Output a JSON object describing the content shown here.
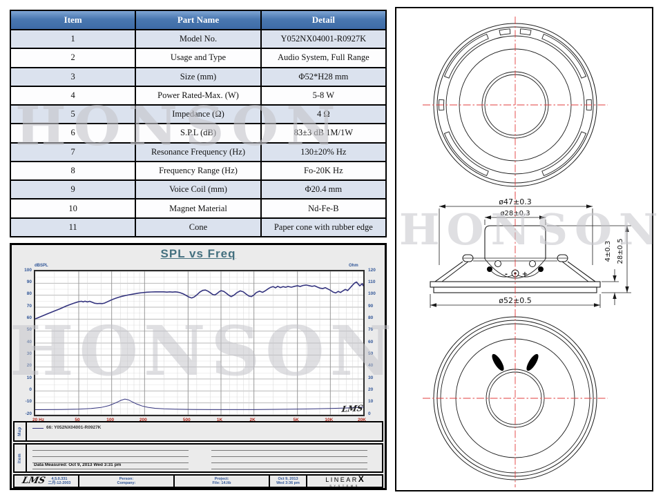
{
  "watermark": "HONSON",
  "table": {
    "headers": [
      "Item",
      "Part Name",
      "Detail"
    ],
    "rows": [
      [
        "1",
        "Model No.",
        "Y052NX04001-R0927K"
      ],
      [
        "2",
        "Usage and Type",
        "Audio System, Full Range"
      ],
      [
        "3",
        "Size (mm)",
        "Φ52*H28 mm"
      ],
      [
        "4",
        "Power Rated-Max. (W)",
        "5-8 W"
      ],
      [
        "5",
        "Impedance (Ω)",
        "4 Ω"
      ],
      [
        "6",
        "S.P.L (dB)",
        "83±3 dB  1M/1W"
      ],
      [
        "7",
        "Resonance Frequency (Hz)",
        "130±20% Hz"
      ],
      [
        "8",
        "Frequency Range (Hz)",
        "Fo-20K Hz"
      ],
      [
        "9",
        "Voice Coil (mm)",
        "Φ20.4 mm"
      ],
      [
        "10",
        "Magnet Material",
        "Nd-Fe-B"
      ],
      [
        "11",
        "Cone",
        "Paper cone with rubber edge"
      ]
    ]
  },
  "chart": {
    "title": "SPL vs Freq",
    "left_axis_label": "dBSPL",
    "right_axis_label": "Ohm",
    "signature": "LMS",
    "y_left_ticks": [
      100,
      90,
      80,
      70,
      60,
      50,
      40,
      30,
      20,
      10,
      0,
      -10,
      -20
    ],
    "y_right_ticks": [
      120,
      110,
      100,
      90,
      80,
      70,
      60,
      50,
      40,
      30,
      20,
      10,
      0
    ],
    "x_ticks": [
      {
        "value": 20,
        "label": "20 Hz"
      },
      {
        "value": 50,
        "label": "50"
      },
      {
        "value": 100,
        "label": "100"
      },
      {
        "value": 200,
        "label": "200"
      },
      {
        "value": 500,
        "label": "500"
      },
      {
        "value": 1000,
        "label": "1K"
      },
      {
        "value": 2000,
        "label": "2K"
      },
      {
        "value": 5000,
        "label": "5K"
      },
      {
        "value": 10000,
        "label": "10K"
      },
      {
        "value": 20000,
        "label": "20K"
      }
    ],
    "chart_data": {
      "type": "line",
      "title": "SPL vs Freq",
      "x_scale": "log",
      "x_range": [
        20,
        20000
      ],
      "y_left_range": [
        -20,
        100
      ],
      "y_right_range": [
        0,
        120
      ],
      "grid": true,
      "series": [
        {
          "name": "SPL (dB, left axis)",
          "points": [
            [
              20,
              60.2
            ],
            [
              23,
              62.5
            ],
            [
              26,
              64.5
            ],
            [
              30,
              66.8
            ],
            [
              34,
              68.8
            ],
            [
              38,
              70.8
            ],
            [
              42,
              72.3
            ],
            [
              46,
              73.6
            ],
            [
              50,
              74.6
            ],
            [
              53,
              74.9
            ],
            [
              55,
              74.4
            ],
            [
              57,
              75.0
            ],
            [
              60,
              74.4
            ],
            [
              63,
              74.9
            ],
            [
              66,
              74.2
            ],
            [
              70,
              73.3
            ],
            [
              74,
              73.0
            ],
            [
              78,
              73.1
            ],
            [
              82,
              73.0
            ],
            [
              86,
              73.4
            ],
            [
              90,
              74.2
            ],
            [
              95,
              75.2
            ],
            [
              100,
              76.2
            ],
            [
              108,
              77.4
            ],
            [
              116,
              78.3
            ],
            [
              125,
              79.1
            ],
            [
              135,
              79.8
            ],
            [
              145,
              80.4
            ],
            [
              160,
              81.1
            ],
            [
              175,
              81.7
            ],
            [
              190,
              82.1
            ],
            [
              210,
              82.5
            ],
            [
              230,
              82.7
            ],
            [
              250,
              82.8
            ],
            [
              270,
              82.8
            ],
            [
              300,
              82.8
            ],
            [
              320,
              82.6
            ],
            [
              340,
              82.8
            ],
            [
              360,
              82.6
            ],
            [
              380,
              82.8
            ],
            [
              400,
              82.6
            ],
            [
              420,
              82.2
            ],
            [
              450,
              81.2
            ],
            [
              480,
              79.8
            ],
            [
              510,
              78.4
            ],
            [
              540,
              77.7
            ],
            [
              570,
              78.6
            ],
            [
              600,
              80.2
            ],
            [
              640,
              82.6
            ],
            [
              680,
              84.0
            ],
            [
              720,
              84.3
            ],
            [
              760,
              83.4
            ],
            [
              800,
              82.0
            ],
            [
              840,
              80.6
            ],
            [
              880,
              80.2
            ],
            [
              920,
              81.4
            ],
            [
              960,
              82.8
            ],
            [
              1000,
              83.8
            ],
            [
              1060,
              83.2
            ],
            [
              1120,
              81.6
            ],
            [
              1180,
              79.9
            ],
            [
              1240,
              78.8
            ],
            [
              1320,
              80.2
            ],
            [
              1400,
              82.2
            ],
            [
              1500,
              83.6
            ],
            [
              1600,
              82.8
            ],
            [
              1700,
              80.9
            ],
            [
              1800,
              79.3
            ],
            [
              1900,
              78.8
            ],
            [
              2000,
              80.2
            ],
            [
              2100,
              82.2
            ],
            [
              2250,
              83.4
            ],
            [
              2400,
              82.4
            ],
            [
              2550,
              83.8
            ],
            [
              2700,
              85.4
            ],
            [
              2850,
              86.6
            ],
            [
              3000,
              87.2
            ],
            [
              3150,
              86.2
            ],
            [
              3300,
              87.4
            ],
            [
              3500,
              86.4
            ],
            [
              3700,
              87.2
            ],
            [
              3900,
              86.6
            ],
            [
              4100,
              87.3
            ],
            [
              4400,
              86.7
            ],
            [
              4700,
              87.4
            ],
            [
              5000,
              87.9
            ],
            [
              5300,
              87.3
            ],
            [
              5600,
              88.1
            ],
            [
              6000,
              88.5
            ],
            [
              6400,
              88.0
            ],
            [
              6800,
              87.4
            ],
            [
              7200,
              87.8
            ],
            [
              7600,
              86.8
            ],
            [
              8000,
              86.0
            ],
            [
              8500,
              85.6
            ],
            [
              9000,
              86.3
            ],
            [
              9500,
              85.2
            ],
            [
              10000,
              84.2
            ],
            [
              10600,
              82.6
            ],
            [
              11200,
              81.9
            ],
            [
              11800,
              83.2
            ],
            [
              12400,
              82.3
            ],
            [
              13000,
              83.6
            ],
            [
              13700,
              84.8
            ],
            [
              14400,
              83.9
            ],
            [
              15200,
              86.2
            ],
            [
              16000,
              88.6
            ],
            [
              16800,
              90.4
            ],
            [
              17400,
              91.0
            ],
            [
              18000,
              89.2
            ],
            [
              18600,
              87.9
            ],
            [
              19200,
              89.0
            ],
            [
              19600,
              89.6
            ],
            [
              20000,
              87.6
            ]
          ]
        },
        {
          "name": "Impedance (Ohm, right axis)",
          "points": [
            [
              20,
              4.3
            ],
            [
              35,
              4.5
            ],
            [
              50,
              4.8
            ],
            [
              65,
              5.3
            ],
            [
              80,
              6.2
            ],
            [
              95,
              7.8
            ],
            [
              110,
              10.2
            ],
            [
              122,
              12.2
            ],
            [
              132,
              13.2
            ],
            [
              142,
              12.6
            ],
            [
              155,
              10.8
            ],
            [
              170,
              9.0
            ],
            [
              190,
              7.4
            ],
            [
              215,
              6.3
            ],
            [
              250,
              5.5
            ],
            [
              300,
              5.0
            ],
            [
              400,
              4.7
            ],
            [
              550,
              4.5
            ],
            [
              800,
              4.4
            ],
            [
              1200,
              4.4
            ],
            [
              2000,
              4.4
            ],
            [
              3500,
              4.6
            ],
            [
              6000,
              4.9
            ],
            [
              10000,
              5.3
            ],
            [
              15000,
              5.8
            ],
            [
              20000,
              6.4
            ]
          ]
        }
      ],
      "curve_color": "#33337e"
    }
  },
  "map_section": {
    "label": "Map",
    "legend": "66:  Y052NX04001-R0927K"
  },
  "item_section": {
    "label": "Item",
    "data_measured": "Data Measured: Oct 9, 2013  Wed  3:31 pm"
  },
  "footer": {
    "lms_logo": "LMS",
    "version": "4.5.0.331",
    "version_date": "二月-12-2003",
    "person": "Person:",
    "company": "Company:",
    "project": "Project:",
    "file": "File: 14.lib",
    "date": "Oct 9, 2013",
    "time": "Wed 3:36 pm",
    "brand": "LINEAR",
    "brand_x": "X",
    "brand_sub": "SYSTEMS"
  },
  "drawing": {
    "dim_top_diameter": "ø47±0.3",
    "dim_magnet_diameter": "ø28±0.3",
    "dim_frame_diameter": "ø52±0.5",
    "dim_flange_height": "4±0.3",
    "dim_total_height": "28±0.5",
    "terminal_minus": "-",
    "terminal_plus": "+"
  }
}
